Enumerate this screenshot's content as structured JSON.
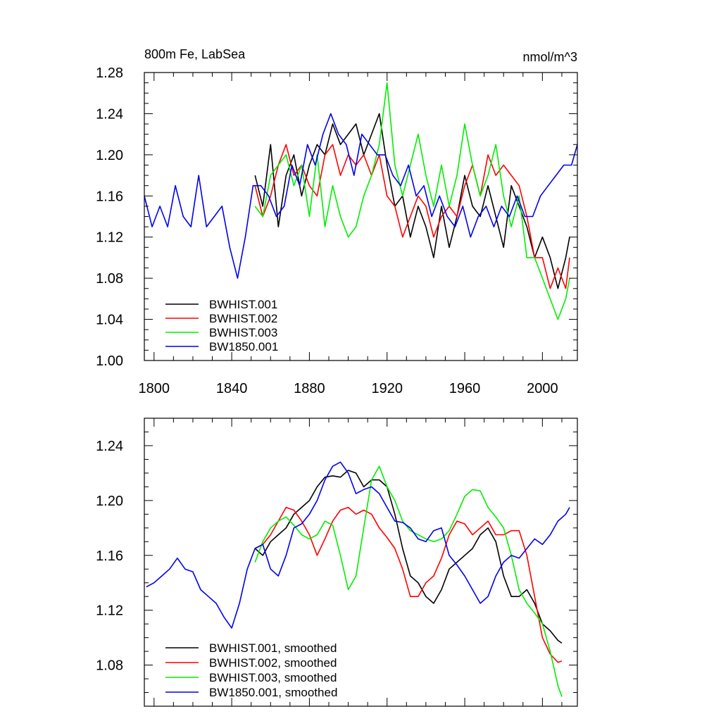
{
  "chart_data": [
    {
      "type": "line",
      "panel": "top",
      "title": "800m Fe, LabSea",
      "units": "nmol/m^3",
      "xlim": [
        1795,
        2018
      ],
      "ylim": [
        1.0,
        1.28
      ],
      "xticks": [
        1800,
        1840,
        1880,
        1920,
        1960,
        2000
      ],
      "xtick_labels": [
        "1800",
        "1840",
        "1880",
        "1920",
        "1960",
        "2000"
      ],
      "yticks": [
        1.0,
        1.04,
        1.08,
        1.12,
        1.16,
        1.2,
        1.24,
        1.28
      ],
      "ytick_labels": [
        "1.00",
        "1.04",
        "1.08",
        "1.12",
        "1.16",
        "1.20",
        "1.24",
        "1.28"
      ],
      "legend_position": "bottom-left",
      "series": [
        {
          "name": "BWHIST.001",
          "color": "#000000",
          "x": [
            1852,
            1856,
            1860,
            1864,
            1868,
            1872,
            1876,
            1880,
            1884,
            1888,
            1892,
            1896,
            1900,
            1904,
            1908,
            1912,
            1916,
            1920,
            1924,
            1928,
            1932,
            1936,
            1940,
            1944,
            1948,
            1952,
            1956,
            1960,
            1964,
            1968,
            1972,
            1976,
            1980,
            1984,
            1988,
            1992,
            1996,
            2000,
            2004,
            2008,
            2012,
            2014
          ],
          "values": [
            1.18,
            1.15,
            1.21,
            1.13,
            1.18,
            1.2,
            1.16,
            1.19,
            1.21,
            1.2,
            1.23,
            1.21,
            1.22,
            1.23,
            1.2,
            1.22,
            1.24,
            1.19,
            1.15,
            1.16,
            1.12,
            1.15,
            1.13,
            1.1,
            1.15,
            1.11,
            1.14,
            1.18,
            1.15,
            1.14,
            1.17,
            1.14,
            1.11,
            1.17,
            1.15,
            1.13,
            1.1,
            1.12,
            1.1,
            1.07,
            1.1,
            1.12
          ]
        },
        {
          "name": "BWHIST.002",
          "color": "#ff0000",
          "x": [
            1852,
            1856,
            1860,
            1864,
            1868,
            1872,
            1876,
            1880,
            1884,
            1888,
            1892,
            1896,
            1900,
            1904,
            1908,
            1912,
            1916,
            1920,
            1924,
            1928,
            1932,
            1936,
            1940,
            1944,
            1948,
            1952,
            1956,
            1960,
            1964,
            1968,
            1972,
            1976,
            1980,
            1984,
            1988,
            1992,
            1996,
            2000,
            2004,
            2008,
            2012,
            2014
          ],
          "values": [
            1.17,
            1.14,
            1.16,
            1.19,
            1.21,
            1.18,
            1.19,
            1.17,
            1.16,
            1.2,
            1.21,
            1.18,
            1.2,
            1.19,
            1.2,
            1.18,
            1.2,
            1.16,
            1.15,
            1.12,
            1.14,
            1.16,
            1.15,
            1.12,
            1.14,
            1.15,
            1.14,
            1.17,
            1.19,
            1.16,
            1.2,
            1.18,
            1.19,
            1.18,
            1.17,
            1.14,
            1.1,
            1.1,
            1.07,
            1.09,
            1.07,
            1.1
          ]
        },
        {
          "name": "BWHIST.003",
          "color": "#00ee00",
          "x": [
            1852,
            1856,
            1860,
            1864,
            1868,
            1872,
            1876,
            1880,
            1884,
            1888,
            1892,
            1896,
            1900,
            1904,
            1908,
            1912,
            1916,
            1920,
            1924,
            1928,
            1932,
            1936,
            1940,
            1944,
            1948,
            1952,
            1956,
            1960,
            1964,
            1968,
            1972,
            1976,
            1980,
            1984,
            1988,
            1992,
            1996,
            2000,
            2004,
            2008,
            2012,
            2014
          ],
          "values": [
            1.15,
            1.14,
            1.18,
            1.19,
            1.2,
            1.17,
            1.19,
            1.14,
            1.2,
            1.13,
            1.17,
            1.14,
            1.12,
            1.13,
            1.16,
            1.18,
            1.21,
            1.27,
            1.19,
            1.16,
            1.19,
            1.22,
            1.18,
            1.15,
            1.19,
            1.15,
            1.18,
            1.23,
            1.19,
            1.16,
            1.18,
            1.21,
            1.16,
            1.13,
            1.16,
            1.1,
            1.1,
            1.08,
            1.06,
            1.04,
            1.06,
            1.08
          ]
        },
        {
          "name": "BW1850.001",
          "color": "#0000ee",
          "x": [
            1795,
            1799,
            1803,
            1807,
            1811,
            1815,
            1819,
            1823,
            1827,
            1831,
            1835,
            1839,
            1843,
            1847,
            1851,
            1855,
            1859,
            1863,
            1867,
            1871,
            1875,
            1879,
            1883,
            1887,
            1891,
            1895,
            1899,
            1903,
            1907,
            1911,
            1915,
            1919,
            1923,
            1927,
            1931,
            1935,
            1939,
            1943,
            1947,
            1951,
            1955,
            1959,
            1963,
            1967,
            1971,
            1975,
            1979,
            1983,
            1987,
            1991,
            1995,
            1999,
            2003,
            2007,
            2011,
            2015,
            2018
          ],
          "values": [
            1.16,
            1.13,
            1.15,
            1.13,
            1.17,
            1.14,
            1.13,
            1.18,
            1.13,
            1.14,
            1.15,
            1.11,
            1.08,
            1.12,
            1.17,
            1.17,
            1.16,
            1.14,
            1.15,
            1.19,
            1.17,
            1.21,
            1.19,
            1.22,
            1.24,
            1.22,
            1.21,
            1.18,
            1.22,
            1.21,
            1.2,
            1.2,
            1.18,
            1.17,
            1.19,
            1.16,
            1.17,
            1.14,
            1.16,
            1.14,
            1.13,
            1.15,
            1.12,
            1.14,
            1.15,
            1.13,
            1.15,
            1.14,
            1.16,
            1.14,
            1.14,
            1.16,
            1.17,
            1.18,
            1.19,
            1.19,
            1.21
          ]
        }
      ]
    },
    {
      "type": "line",
      "panel": "bottom",
      "title": "",
      "xlim": [
        1795,
        2018
      ],
      "ylim": [
        1.05,
        1.26
      ],
      "xticks": [
        1800,
        1840,
        1880,
        1920,
        1960,
        2000
      ],
      "yticks": [
        1.08,
        1.12,
        1.16,
        1.2,
        1.24
      ],
      "ytick_labels": [
        "1.08",
        "1.12",
        "1.16",
        "1.20",
        "1.24"
      ],
      "legend_position": "bottom-left",
      "series": [
        {
          "name": "BWHIST.001, smoothed",
          "color": "#000000",
          "x": [
            1852,
            1856,
            1860,
            1864,
            1868,
            1872,
            1876,
            1880,
            1884,
            1888,
            1892,
            1896,
            1900,
            1904,
            1908,
            1912,
            1916,
            1920,
            1924,
            1928,
            1932,
            1936,
            1940,
            1944,
            1948,
            1952,
            1956,
            1960,
            1964,
            1968,
            1972,
            1976,
            1980,
            1984,
            1988,
            1992,
            1996,
            2000,
            2004,
            2008,
            2010
          ],
          "values": [
            1.165,
            1.16,
            1.17,
            1.175,
            1.18,
            1.19,
            1.195,
            1.2,
            1.21,
            1.217,
            1.218,
            1.217,
            1.222,
            1.22,
            1.21,
            1.215,
            1.215,
            1.21,
            1.19,
            1.165,
            1.145,
            1.14,
            1.13,
            1.125,
            1.135,
            1.15,
            1.155,
            1.16,
            1.165,
            1.175,
            1.18,
            1.17,
            1.145,
            1.13,
            1.13,
            1.135,
            1.125,
            1.11,
            1.105,
            1.098,
            1.096
          ]
        },
        {
          "name": "BWHIST.002, smoothed",
          "color": "#ff0000",
          "x": [
            1852,
            1856,
            1860,
            1864,
            1868,
            1872,
            1876,
            1880,
            1884,
            1888,
            1892,
            1896,
            1900,
            1904,
            1908,
            1912,
            1916,
            1920,
            1924,
            1928,
            1932,
            1936,
            1940,
            1944,
            1948,
            1952,
            1956,
            1960,
            1964,
            1968,
            1972,
            1976,
            1980,
            1984,
            1988,
            1992,
            1996,
            2000,
            2004,
            2008,
            2010
          ],
          "values": [
            1.165,
            1.168,
            1.175,
            1.185,
            1.195,
            1.193,
            1.185,
            1.175,
            1.16,
            1.172,
            1.185,
            1.193,
            1.195,
            1.19,
            1.193,
            1.19,
            1.18,
            1.173,
            1.165,
            1.15,
            1.13,
            1.13,
            1.14,
            1.145,
            1.158,
            1.175,
            1.185,
            1.183,
            1.175,
            1.18,
            1.185,
            1.175,
            1.175,
            1.178,
            1.178,
            1.16,
            1.13,
            1.1,
            1.088,
            1.082,
            1.083
          ]
        },
        {
          "name": "BWHIST.003, smoothed",
          "color": "#00ee00",
          "x": [
            1852,
            1856,
            1860,
            1864,
            1868,
            1872,
            1876,
            1880,
            1884,
            1888,
            1892,
            1896,
            1900,
            1904,
            1908,
            1912,
            1916,
            1920,
            1924,
            1928,
            1932,
            1936,
            1940,
            1944,
            1948,
            1952,
            1956,
            1960,
            1964,
            1968,
            1972,
            1976,
            1980,
            1984,
            1988,
            1992,
            1996,
            2000,
            2004,
            2008,
            2010
          ],
          "values": [
            1.155,
            1.17,
            1.18,
            1.185,
            1.188,
            1.182,
            1.175,
            1.172,
            1.175,
            1.185,
            1.182,
            1.16,
            1.135,
            1.145,
            1.18,
            1.215,
            1.225,
            1.21,
            1.2,
            1.185,
            1.178,
            1.175,
            1.172,
            1.17,
            1.172,
            1.178,
            1.19,
            1.203,
            1.208,
            1.207,
            1.195,
            1.188,
            1.18,
            1.16,
            1.135,
            1.125,
            1.118,
            1.11,
            1.09,
            1.065,
            1.057
          ]
        },
        {
          "name": "BW1850.001, smoothed",
          "color": "#0000ee",
          "x": [
            1796,
            1800,
            1804,
            1808,
            1812,
            1816,
            1820,
            1824,
            1828,
            1832,
            1836,
            1840,
            1844,
            1848,
            1852,
            1856,
            1860,
            1864,
            1868,
            1872,
            1876,
            1880,
            1884,
            1888,
            1892,
            1896,
            1900,
            1904,
            1908,
            1912,
            1916,
            1920,
            1924,
            1928,
            1932,
            1936,
            1940,
            1944,
            1948,
            1952,
            1956,
            1960,
            1964,
            1968,
            1972,
            1976,
            1980,
            1984,
            1988,
            1992,
            1996,
            2000,
            2004,
            2008,
            2012,
            2014
          ],
          "values": [
            1.137,
            1.14,
            1.145,
            1.15,
            1.158,
            1.15,
            1.148,
            1.135,
            1.13,
            1.125,
            1.115,
            1.107,
            1.125,
            1.15,
            1.165,
            1.168,
            1.15,
            1.145,
            1.16,
            1.18,
            1.183,
            1.19,
            1.2,
            1.215,
            1.225,
            1.228,
            1.22,
            1.205,
            1.208,
            1.21,
            1.205,
            1.195,
            1.185,
            1.184,
            1.18,
            1.172,
            1.17,
            1.178,
            1.18,
            1.16,
            1.153,
            1.145,
            1.135,
            1.125,
            1.13,
            1.145,
            1.155,
            1.16,
            1.158,
            1.165,
            1.172,
            1.168,
            1.175,
            1.185,
            1.19,
            1.195
          ]
        }
      ]
    }
  ]
}
